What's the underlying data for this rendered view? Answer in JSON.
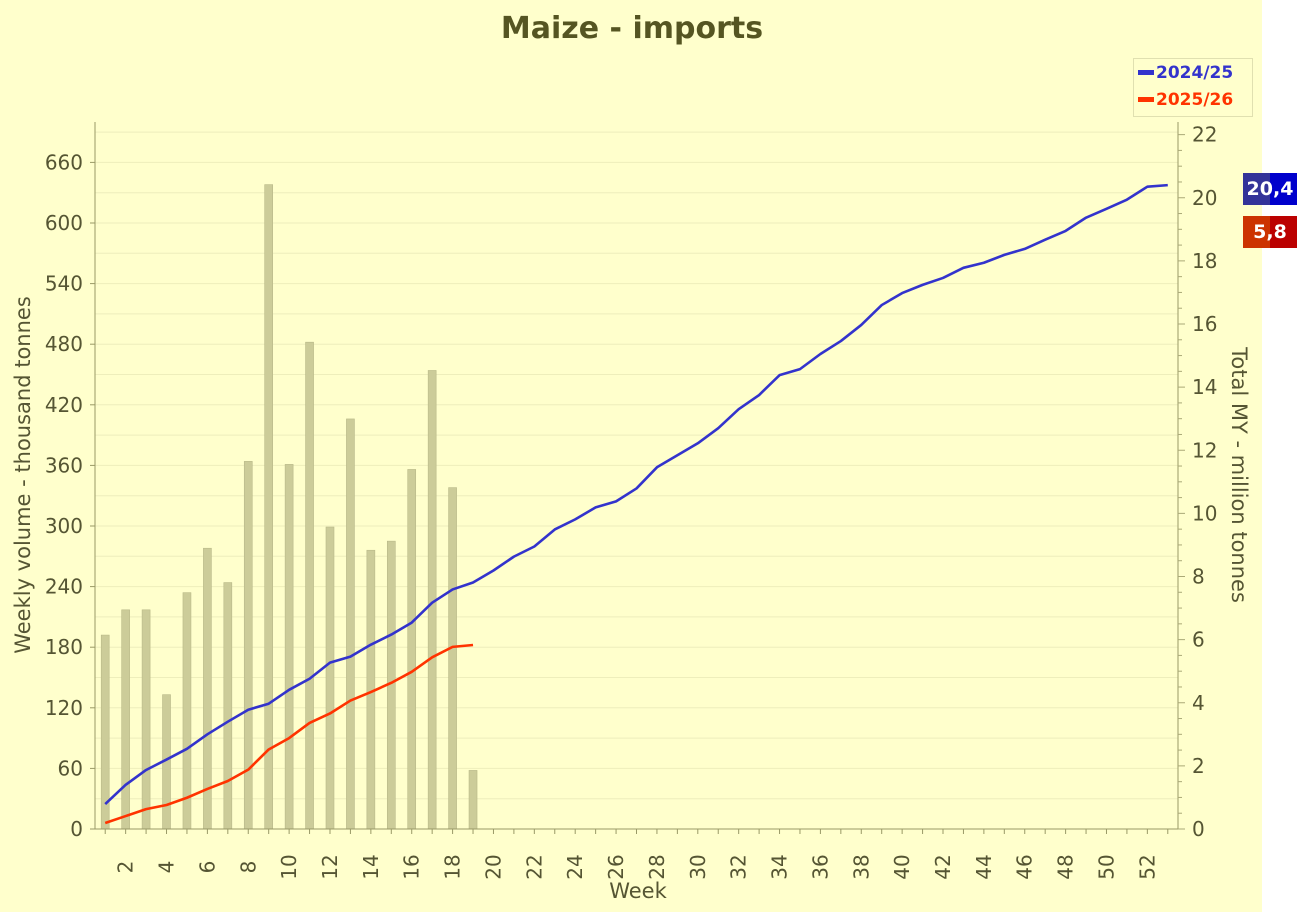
{
  "chart_data": {
    "type": "bar+line",
    "title": "Maize - imports",
    "xlabel": "Week",
    "ylabel_left": "Weekly volume - thousand tonnes",
    "ylabel_right": "Total MY - million tonnes",
    "ylim_left": [
      0,
      700
    ],
    "ylim_right": [
      0,
      22.4
    ],
    "left_ticks": [
      0,
      60,
      120,
      180,
      240,
      300,
      360,
      420,
      480,
      540,
      600,
      660
    ],
    "right_ticks": [
      0,
      2,
      4,
      6,
      8,
      10,
      12,
      14,
      16,
      18,
      20,
      22
    ],
    "x_tick_labels": [
      2,
      4,
      6,
      8,
      10,
      12,
      14,
      16,
      18,
      20,
      22,
      24,
      26,
      28,
      30,
      32,
      34,
      36,
      38,
      40,
      42,
      44,
      46,
      48,
      50,
      52
    ],
    "weeks": 53,
    "grid": true,
    "legend_position": "top-right",
    "bars": {
      "axis": "left",
      "color": "#cccc99",
      "values": [
        192,
        217,
        217,
        133,
        234,
        278,
        244,
        364,
        638,
        361,
        482,
        299,
        406,
        276,
        285,
        356,
        454,
        338,
        58
      ]
    },
    "series": [
      {
        "name": "2024/25",
        "axis": "right",
        "color": "#3333cc",
        "values": [
          0.79,
          1.4,
          1.87,
          2.2,
          2.54,
          3.0,
          3.4,
          3.78,
          3.97,
          4.41,
          4.76,
          5.27,
          5.46,
          5.84,
          6.16,
          6.54,
          7.17,
          7.59,
          7.81,
          8.19,
          8.63,
          8.95,
          9.49,
          9.81,
          10.19,
          10.38,
          10.79,
          11.46,
          11.84,
          12.22,
          12.7,
          13.3,
          13.75,
          14.38,
          14.57,
          15.05,
          15.46,
          15.97,
          16.6,
          16.98,
          17.24,
          17.46,
          17.78,
          17.94,
          18.19,
          18.38,
          18.67,
          18.95,
          19.37,
          19.65,
          19.94,
          20.35,
          20.4
        ],
        "last_label": "20,4",
        "badge_color": "#0000cc"
      },
      {
        "name": "2025/26",
        "axis": "right",
        "color": "#ff3300",
        "values": [
          0.19,
          0.41,
          0.63,
          0.76,
          0.99,
          1.27,
          1.52,
          1.88,
          2.52,
          2.88,
          3.36,
          3.66,
          4.07,
          4.34,
          4.63,
          4.98,
          5.44,
          5.77,
          5.83
        ],
        "last_label": "5,8",
        "badge_color": "#cc0000"
      }
    ]
  }
}
